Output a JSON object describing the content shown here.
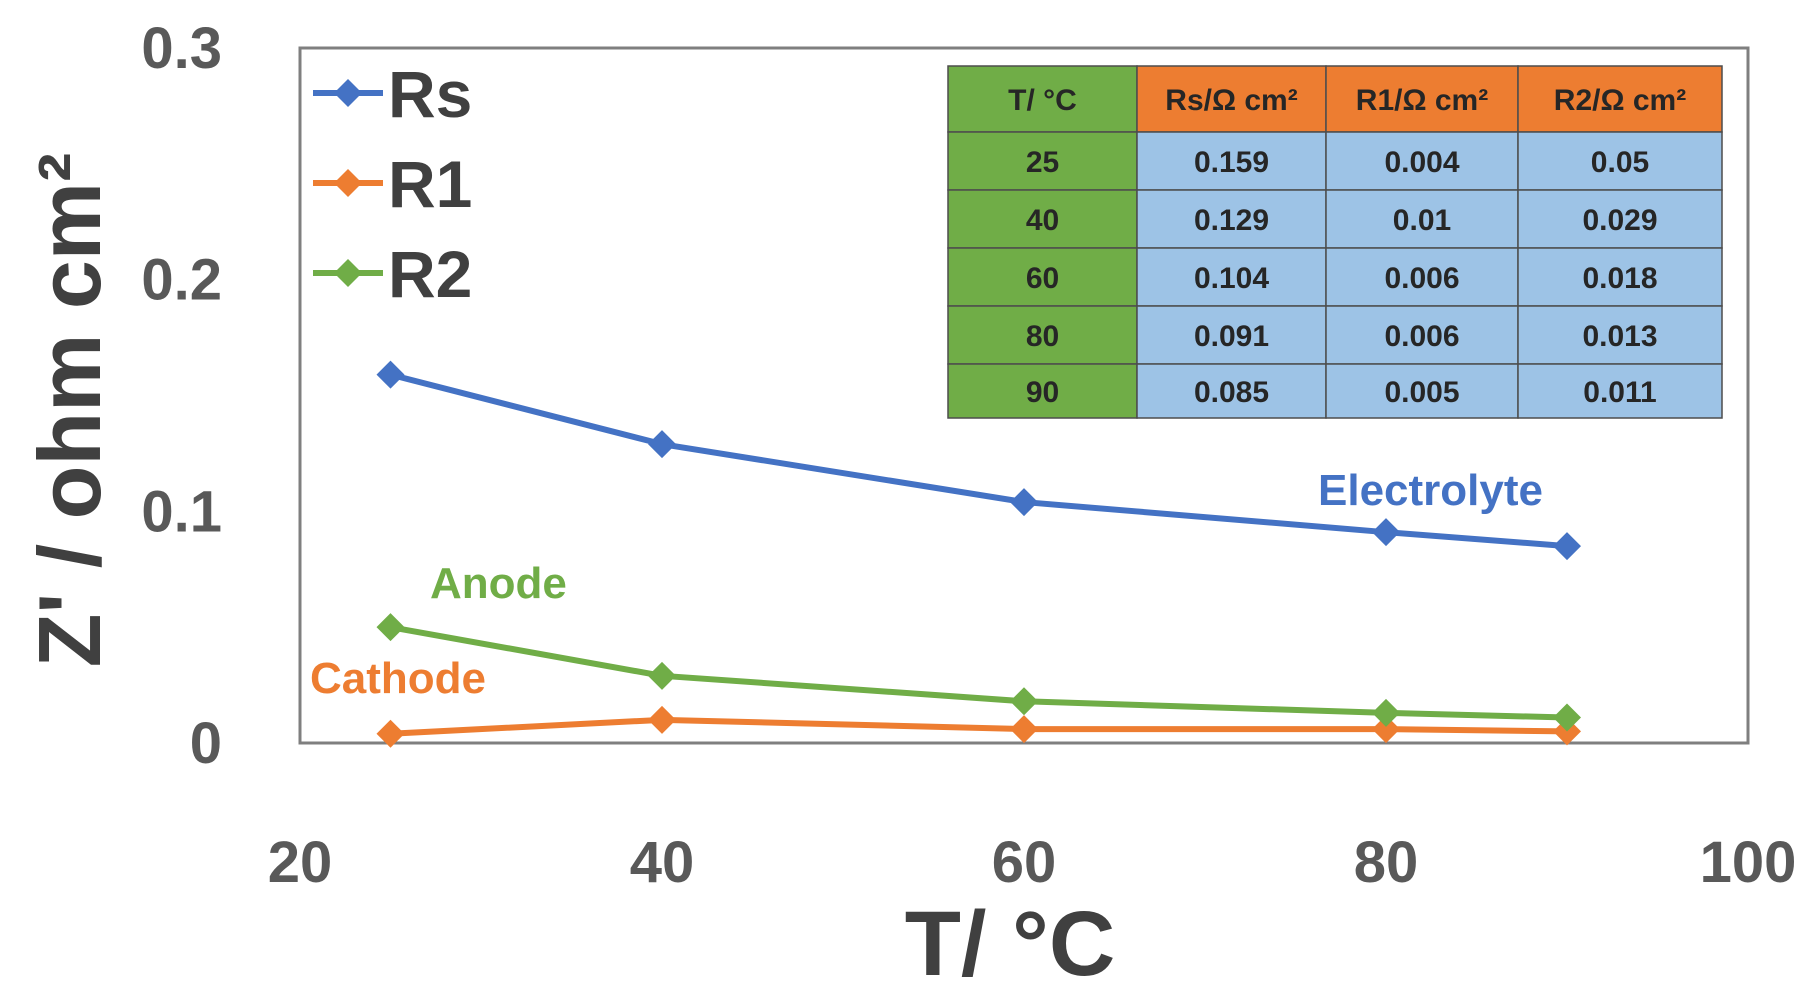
{
  "chart_data": {
    "type": "line",
    "xlabel": "T/ °C",
    "ylabel": "Z' / ohm cm²",
    "xlim": [
      20,
      100
    ],
    "ylim": [
      0,
      0.3
    ],
    "xticks": [
      "20",
      "40",
      "60",
      "80",
      "100"
    ],
    "yticks": [
      "0",
      "0.1",
      "0.2",
      "0.3"
    ],
    "grid": false,
    "legend_position": "top-left",
    "x": [
      25,
      40,
      60,
      80,
      90
    ],
    "series": [
      {
        "name": "Rs",
        "color": "#4472C4",
        "values": [
          0.159,
          0.129,
          0.104,
          0.091,
          0.085
        ]
      },
      {
        "name": "R1",
        "color": "#ED7D31",
        "values": [
          0.004,
          0.01,
          0.006,
          0.006,
          0.005
        ]
      },
      {
        "name": "R2",
        "color": "#70AD47",
        "values": [
          0.05,
          0.029,
          0.018,
          0.013,
          0.011
        ]
      }
    ],
    "annotations": [
      {
        "text": "Electrolyte",
        "color": "#4472C4"
      },
      {
        "text": "Anode",
        "color": "#70AD47"
      },
      {
        "text": "Cathode",
        "color": "#ED7D31"
      }
    ],
    "inset_table": {
      "headers": [
        "T/ °C",
        "Rs/Ω cm²",
        "R1/Ω cm²",
        "R2/Ω cm²"
      ],
      "rows": [
        [
          "25",
          "0.159",
          "0.004",
          "0.05"
        ],
        [
          "40",
          "0.129",
          "0.01",
          "0.029"
        ],
        [
          "60",
          "0.104",
          "0.006",
          "0.018"
        ],
        [
          "80",
          "0.091",
          "0.006",
          "0.013"
        ],
        [
          "90",
          "0.085",
          "0.005",
          "0.011"
        ]
      ],
      "colors": {
        "first_col": "#70AD47",
        "header": "#ED7D31",
        "body": "#9DC3E6",
        "border": "#4d4d4d"
      }
    }
  }
}
